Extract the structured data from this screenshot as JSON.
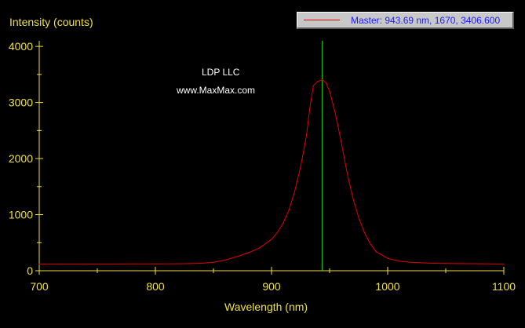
{
  "chart_data": {
    "type": "line",
    "ylabel": "Intensity (counts)",
    "xlabel": "Wavelength (nm)",
    "xlim": [
      700,
      1100
    ],
    "ylim": [
      0,
      4100
    ],
    "xticks": [
      700,
      800,
      900,
      1000,
      1100
    ],
    "yticks": [
      0,
      1000,
      2000,
      3000,
      4000
    ],
    "grid": false,
    "legend": {
      "placement": "top-right",
      "text": "Master: 943.69 nm, 1670, 3406.600"
    },
    "annotations": [
      "LDP LLC",
      "www.MaxMax.com"
    ],
    "cursor": {
      "x": 943.69,
      "y": 3406.6
    },
    "series": [
      {
        "name": "Master",
        "x": [
          700,
          720,
          740,
          760,
          780,
          800,
          820,
          830,
          840,
          850,
          860,
          870,
          880,
          890,
          900,
          905,
          910,
          915,
          920,
          925,
          930,
          933,
          936,
          940,
          943.69,
          947,
          950,
          955,
          960,
          965,
          970,
          975,
          980,
          985,
          990,
          1000,
          1010,
          1020,
          1030,
          1040,
          1050,
          1060,
          1080,
          1100
        ],
        "y": [
          120,
          120,
          121,
          121,
          122,
          123,
          125,
          128,
          135,
          150,
          190,
          250,
          320,
          410,
          560,
          680,
          850,
          1080,
          1420,
          1850,
          2400,
          2900,
          3300,
          3380,
          3406.6,
          3350,
          3200,
          2800,
          2300,
          1750,
          1300,
          950,
          680,
          480,
          340,
          220,
          170,
          150,
          140,
          133,
          130,
          128,
          125,
          120
        ]
      }
    ]
  }
}
